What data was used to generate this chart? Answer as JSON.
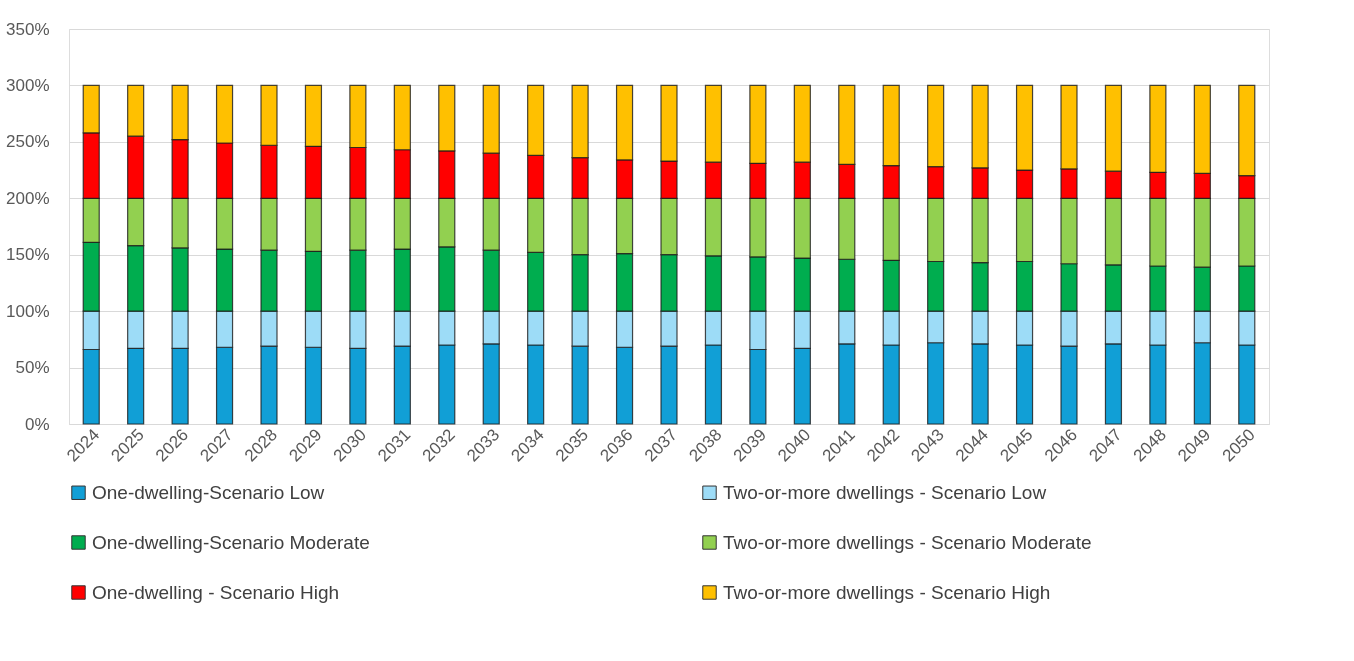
{
  "chart_data": {
    "type": "bar",
    "stacked": true,
    "categories": [
      "2024",
      "2025",
      "2026",
      "2027",
      "2028",
      "2029",
      "2030",
      "2031",
      "2032",
      "2033",
      "2034",
      "2035",
      "2036",
      "2037",
      "2038",
      "2039",
      "2040",
      "2041",
      "2042",
      "2043",
      "2044",
      "2045",
      "2046",
      "2047",
      "2048",
      "2049",
      "2050"
    ],
    "series": [
      {
        "name": "One-dwelling-Scenario Low",
        "color": "#119fd6",
        "values": [
          66,
          67,
          67,
          68,
          69,
          68,
          67,
          69,
          70,
          71,
          70,
          69,
          68,
          69,
          70,
          66,
          67,
          71,
          70,
          72,
          71,
          70,
          69,
          71,
          70,
          72,
          70
        ]
      },
      {
        "name": "Two-or-more dwellings - Scenario Low",
        "color": "#9ddcf7",
        "values": [
          34,
          33,
          33,
          32,
          31,
          32,
          33,
          31,
          30,
          29,
          30,
          31,
          32,
          31,
          30,
          34,
          33,
          29,
          30,
          28,
          29,
          30,
          31,
          29,
          30,
          28,
          30
        ]
      },
      {
        "name": "One-dwelling-Scenario Moderate",
        "color": "#00ad4f",
        "values": [
          61,
          58,
          56,
          55,
          54,
          53,
          54,
          55,
          57,
          54,
          52,
          50,
          51,
          50,
          49,
          48,
          47,
          46,
          45,
          44,
          43,
          44,
          42,
          41,
          40,
          39,
          40
        ]
      },
      {
        "name": "Two-or-more dwellings - Scenario Moderate",
        "color": "#92d050",
        "values": [
          39,
          42,
          44,
          45,
          46,
          47,
          46,
          45,
          43,
          46,
          48,
          50,
          49,
          50,
          51,
          52,
          53,
          54,
          55,
          56,
          57,
          56,
          58,
          59,
          60,
          61,
          60
        ]
      },
      {
        "name": "One-dwelling - Scenario High",
        "color": "#ff0000",
        "values": [
          58,
          55,
          52,
          49,
          47,
          46,
          45,
          43,
          42,
          40,
          38,
          36,
          34,
          33,
          32,
          31,
          32,
          30,
          29,
          28,
          27,
          25,
          26,
          24,
          23,
          22,
          20
        ]
      },
      {
        "name": "Two-or-more dwellings - Scenario High",
        "color": "#ffc000",
        "values": [
          42,
          45,
          48,
          51,
          53,
          54,
          55,
          57,
          58,
          60,
          62,
          64,
          66,
          67,
          68,
          69,
          68,
          70,
          71,
          72,
          73,
          75,
          74,
          76,
          77,
          78,
          80
        ]
      }
    ],
    "ylim": [
      0,
      350
    ],
    "yticks": [
      {
        "value": 0,
        "label": "0%"
      },
      {
        "value": 50,
        "label": "50%"
      },
      {
        "value": 100,
        "label": "100%"
      },
      {
        "value": 150,
        "label": "150%"
      },
      {
        "value": 200,
        "label": "200%"
      },
      {
        "value": 250,
        "label": "250%"
      },
      {
        "value": 300,
        "label": "300%"
      },
      {
        "value": 350,
        "label": "350%"
      }
    ],
    "grid": "y",
    "legend": "bottom"
  }
}
